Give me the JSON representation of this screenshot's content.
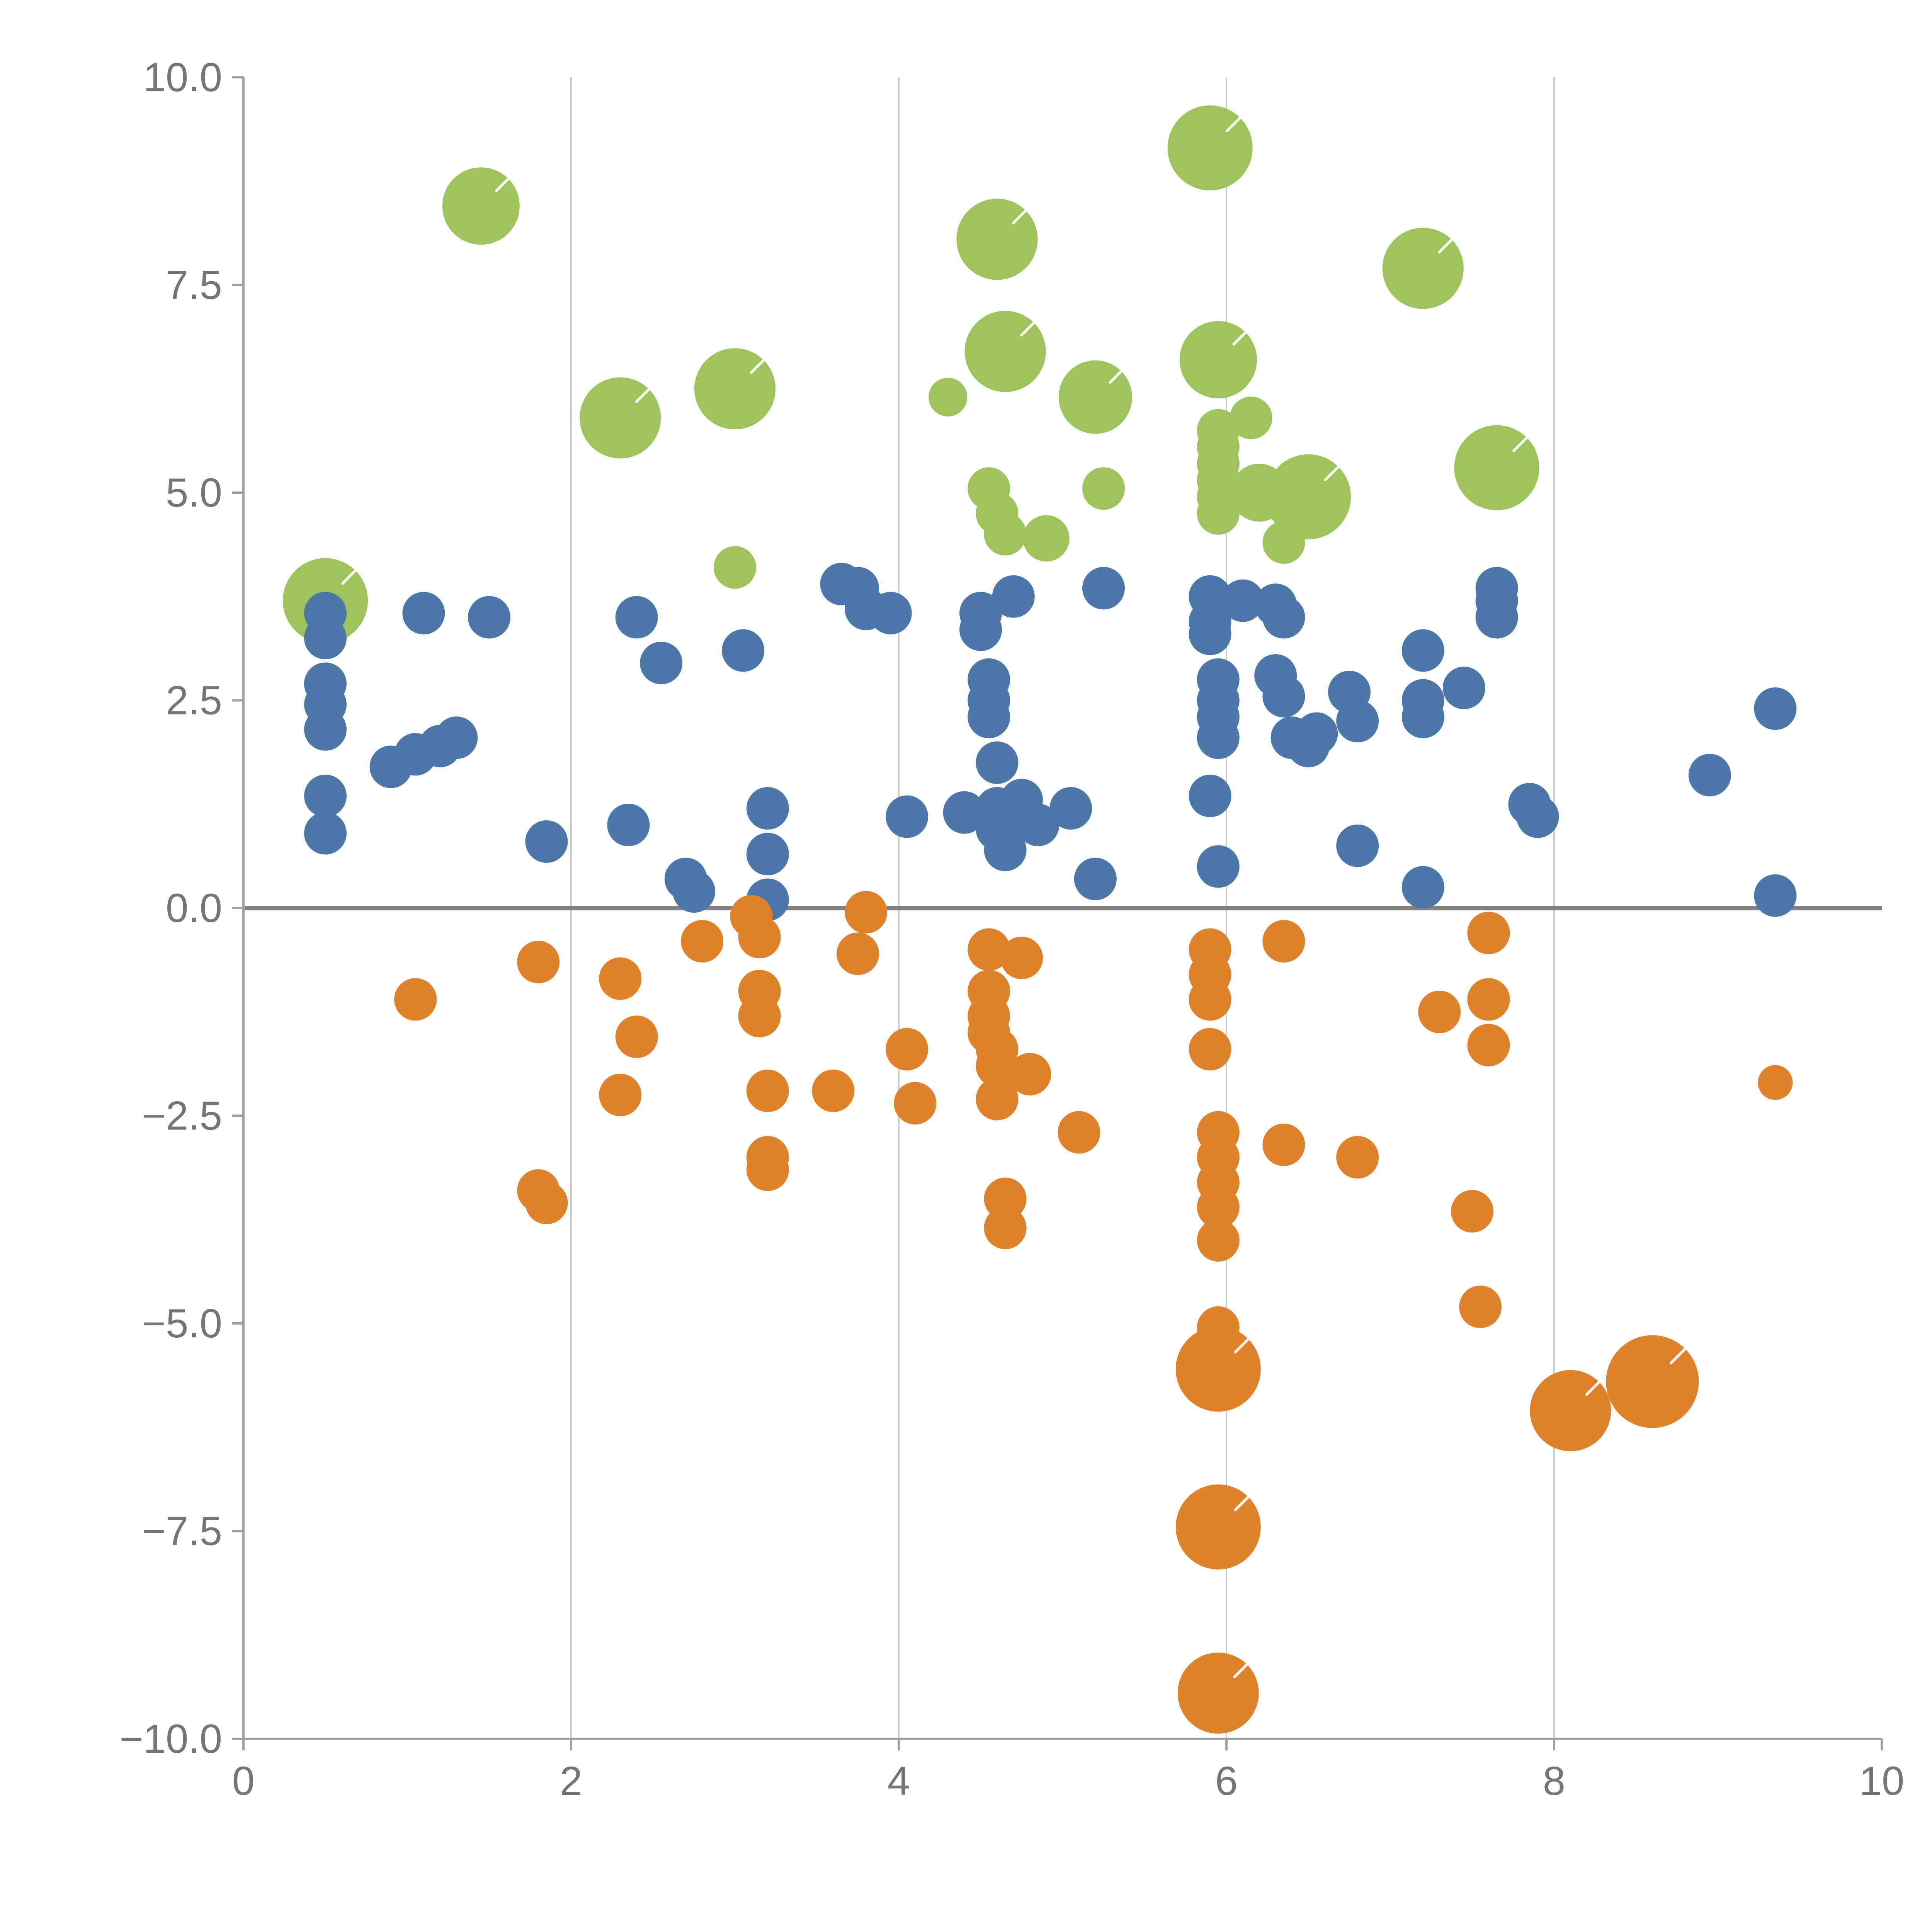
{
  "chart_data": {
    "type": "scatter",
    "title": "",
    "xlabel": "",
    "ylabel": "",
    "xlim": [
      0,
      10
    ],
    "ylim": [
      -10,
      10
    ],
    "grid": "vertical-only",
    "legend": "none",
    "x_ticks": [
      {
        "value": 0,
        "label": "0"
      },
      {
        "value": 2,
        "label": "2"
      },
      {
        "value": 4,
        "label": "4"
      },
      {
        "value": 6,
        "label": "6"
      },
      {
        "value": 8,
        "label": "8"
      },
      {
        "value": 10,
        "label": "10"
      }
    ],
    "y_ticks": [
      {
        "value": 10,
        "label": "10.0"
      },
      {
        "value": 7.5,
        "label": "7.5"
      },
      {
        "value": 5,
        "label": "5.0"
      },
      {
        "value": 2.5,
        "label": "2.5"
      },
      {
        "value": 0,
        "label": "0.0"
      },
      {
        "value": -2.5,
        "label": "−2.5"
      },
      {
        "value": -5,
        "label": "−5.0"
      },
      {
        "value": -7.5,
        "label": "−7.5"
      },
      {
        "value": -10,
        "label": "−10.0"
      }
    ],
    "gridlines_x": [
      2,
      4,
      6,
      8
    ],
    "zero_line_y": 0,
    "colors": {
      "grid": "#c9c9c9",
      "axis": "#a0a0a0",
      "tick_label": "#757575",
      "zero_line": "#808080",
      "bubble_highlight": "#ffffff"
    },
    "series": [
      {
        "name": "green",
        "color": "#9cc35c",
        "points": [
          [
            0.5,
            3.7,
            110
          ],
          [
            1.45,
            8.45,
            100
          ],
          [
            2.3,
            5.9,
            105
          ],
          [
            3.0,
            6.25,
            105
          ],
          [
            3.0,
            4.1,
            55
          ],
          [
            4.3,
            6.15,
            50
          ],
          [
            4.6,
            8.05,
            105
          ],
          [
            4.65,
            6.7,
            105
          ],
          [
            4.55,
            5.05,
            55
          ],
          [
            4.6,
            4.75,
            55
          ],
          [
            4.65,
            4.5,
            55
          ],
          [
            4.9,
            4.45,
            60
          ],
          [
            5.2,
            6.15,
            95
          ],
          [
            5.25,
            5.05,
            55
          ],
          [
            5.9,
            9.15,
            110
          ],
          [
            5.95,
            6.6,
            100
          ],
          [
            5.95,
            5.75,
            55
          ],
          [
            5.95,
            5.55,
            55
          ],
          [
            5.95,
            5.35,
            55
          ],
          [
            5.95,
            5.15,
            55
          ],
          [
            5.95,
            4.95,
            55
          ],
          [
            5.95,
            4.75,
            55
          ],
          [
            6.15,
            5.9,
            55
          ],
          [
            6.2,
            5.0,
            75
          ],
          [
            6.5,
            4.95,
            110
          ],
          [
            6.35,
            4.4,
            55
          ],
          [
            7.2,
            7.7,
            105
          ],
          [
            7.65,
            5.3,
            110
          ]
        ]
      },
      {
        "name": "blue",
        "color": "#4c78a8",
        "points": [
          [
            0.5,
            3.55,
            55
          ],
          [
            0.5,
            3.25,
            55
          ],
          [
            0.5,
            2.7,
            55
          ],
          [
            0.5,
            2.45,
            55
          ],
          [
            0.5,
            2.15,
            55
          ],
          [
            0.5,
            1.35,
            55
          ],
          [
            0.5,
            0.9,
            55
          ],
          [
            0.9,
            1.7,
            55
          ],
          [
            1.05,
            1.85,
            55
          ],
          [
            1.1,
            3.55,
            55
          ],
          [
            1.2,
            1.95,
            55
          ],
          [
            1.3,
            2.05,
            55
          ],
          [
            1.5,
            3.5,
            55
          ],
          [
            1.85,
            0.8,
            55
          ],
          [
            2.4,
            3.5,
            55
          ],
          [
            2.55,
            2.95,
            55
          ],
          [
            2.35,
            1.0,
            55
          ],
          [
            2.7,
            0.35,
            55
          ],
          [
            2.75,
            0.2,
            55
          ],
          [
            3.05,
            3.1,
            55
          ],
          [
            3.2,
            1.2,
            55
          ],
          [
            3.2,
            0.65,
            55
          ],
          [
            3.2,
            0.1,
            55
          ],
          [
            3.65,
            3.9,
            55
          ],
          [
            3.75,
            3.85,
            55
          ],
          [
            3.8,
            3.6,
            55
          ],
          [
            3.95,
            3.55,
            55
          ],
          [
            4.05,
            1.1,
            55
          ],
          [
            4.4,
            1.15,
            55
          ],
          [
            4.5,
            3.55,
            55
          ],
          [
            4.5,
            3.35,
            55
          ],
          [
            4.55,
            2.75,
            55
          ],
          [
            4.55,
            2.5,
            55
          ],
          [
            4.55,
            2.3,
            55
          ],
          [
            4.6,
            1.75,
            55
          ],
          [
            4.6,
            1.2,
            55
          ],
          [
            4.6,
            0.95,
            55
          ],
          [
            4.65,
            0.7,
            55
          ],
          [
            4.7,
            3.75,
            55
          ],
          [
            4.75,
            1.3,
            55
          ],
          [
            4.85,
            1.0,
            55
          ],
          [
            5.05,
            1.2,
            55
          ],
          [
            5.25,
            3.85,
            55
          ],
          [
            5.2,
            0.35,
            55
          ],
          [
            5.9,
            3.75,
            55
          ],
          [
            5.9,
            3.45,
            55
          ],
          [
            5.9,
            3.3,
            55
          ],
          [
            5.95,
            2.75,
            55
          ],
          [
            5.95,
            2.5,
            55
          ],
          [
            5.95,
            2.3,
            55
          ],
          [
            5.95,
            2.05,
            55
          ],
          [
            5.9,
            1.35,
            55
          ],
          [
            5.95,
            0.5,
            55
          ],
          [
            6.1,
            3.7,
            55
          ],
          [
            6.3,
            3.65,
            55
          ],
          [
            6.35,
            3.5,
            55
          ],
          [
            6.3,
            2.8,
            55
          ],
          [
            6.35,
            2.55,
            55
          ],
          [
            6.4,
            2.05,
            55
          ],
          [
            6.5,
            1.95,
            55
          ],
          [
            6.55,
            2.1,
            55
          ],
          [
            6.75,
            2.6,
            55
          ],
          [
            6.8,
            2.25,
            55
          ],
          [
            6.8,
            0.75,
            55
          ],
          [
            7.2,
            3.1,
            55
          ],
          [
            7.2,
            2.5,
            55
          ],
          [
            7.2,
            2.3,
            55
          ],
          [
            7.2,
            0.25,
            55
          ],
          [
            7.45,
            2.65,
            55
          ],
          [
            7.65,
            3.85,
            55
          ],
          [
            7.65,
            3.7,
            55
          ],
          [
            7.65,
            3.5,
            55
          ],
          [
            7.85,
            1.25,
            55
          ],
          [
            7.9,
            1.1,
            55
          ],
          [
            8.95,
            1.6,
            55
          ],
          [
            9.35,
            2.4,
            55
          ],
          [
            9.35,
            0.15,
            55
          ]
        ]
      },
      {
        "name": "orange",
        "color": "#e0812c",
        "points": [
          [
            1.05,
            -1.1,
            55
          ],
          [
            1.8,
            -0.65,
            55
          ],
          [
            1.8,
            -3.4,
            55
          ],
          [
            1.85,
            -3.55,
            55
          ],
          [
            2.3,
            -0.85,
            55
          ],
          [
            2.3,
            -2.25,
            55
          ],
          [
            2.4,
            -1.55,
            55
          ],
          [
            2.8,
            -0.4,
            55
          ],
          [
            3.1,
            -0.1,
            55
          ],
          [
            3.15,
            -0.35,
            55
          ],
          [
            3.15,
            -1.0,
            55
          ],
          [
            3.15,
            -1.3,
            55
          ],
          [
            3.2,
            -2.2,
            55
          ],
          [
            3.2,
            -3.0,
            55
          ],
          [
            3.2,
            -3.15,
            55
          ],
          [
            3.6,
            -2.2,
            55
          ],
          [
            3.8,
            -0.05,
            55
          ],
          [
            3.75,
            -0.55,
            55
          ],
          [
            4.05,
            -1.7,
            55
          ],
          [
            4.1,
            -2.35,
            55
          ],
          [
            4.55,
            -0.5,
            55
          ],
          [
            4.55,
            -1.0,
            55
          ],
          [
            4.55,
            -1.3,
            55
          ],
          [
            4.55,
            -1.5,
            55
          ],
          [
            4.6,
            -1.7,
            55
          ],
          [
            4.6,
            -1.9,
            55
          ],
          [
            4.6,
            -2.3,
            55
          ],
          [
            4.65,
            -3.5,
            55
          ],
          [
            4.65,
            -3.85,
            55
          ],
          [
            4.75,
            -0.6,
            55
          ],
          [
            4.8,
            -2.0,
            55
          ],
          [
            5.1,
            -2.7,
            55
          ],
          [
            5.9,
            -0.5,
            55
          ],
          [
            5.9,
            -0.8,
            55
          ],
          [
            5.9,
            -1.1,
            55
          ],
          [
            5.9,
            -1.7,
            55
          ],
          [
            5.95,
            -2.7,
            55
          ],
          [
            5.95,
            -3.0,
            55
          ],
          [
            5.95,
            -3.3,
            55
          ],
          [
            5.95,
            -3.6,
            55
          ],
          [
            5.95,
            -4.0,
            55
          ],
          [
            5.95,
            -5.05,
            55
          ],
          [
            5.95,
            -5.55,
            110
          ],
          [
            5.95,
            -7.45,
            110
          ],
          [
            5.95,
            -9.45,
            105
          ],
          [
            6.35,
            -0.4,
            55
          ],
          [
            6.35,
            -2.85,
            55
          ],
          [
            6.8,
            -3.0,
            55
          ],
          [
            7.3,
            -1.25,
            55
          ],
          [
            7.5,
            -3.65,
            55
          ],
          [
            7.55,
            -4.8,
            55
          ],
          [
            7.6,
            -0.3,
            55
          ],
          [
            7.6,
            -1.1,
            55
          ],
          [
            7.6,
            -1.65,
            55
          ],
          [
            8.1,
            -6.05,
            105
          ],
          [
            8.6,
            -5.7,
            120
          ],
          [
            9.35,
            -2.1,
            45
          ]
        ]
      }
    ]
  }
}
